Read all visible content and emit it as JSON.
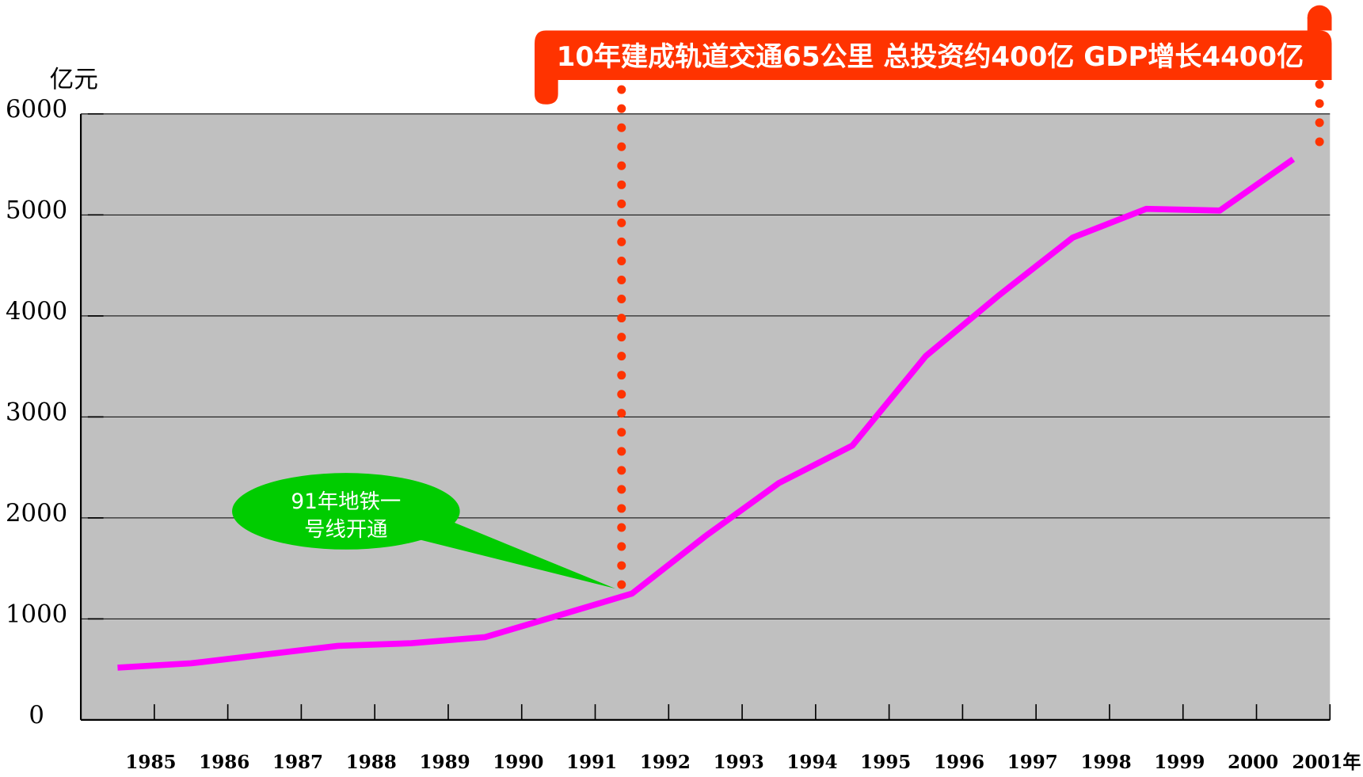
{
  "chart_data": {
    "type": "line",
    "y_axis_label": "亿元",
    "categories": [
      "1985",
      "1986",
      "1987",
      "1988",
      "1989",
      "1990",
      "1991",
      "1992",
      "1993",
      "1994",
      "1995",
      "1996",
      "1997",
      "1998",
      "1999",
      "2000",
      "2001年"
    ],
    "series": [
      {
        "name": "GDP",
        "color": "#ff00ff",
        "values": [
          517,
          560,
          647,
          733,
          759,
          819,
          1034,
          1250,
          1819,
          2345,
          2716,
          3603,
          4207,
          4776,
          5060,
          5043,
          5552
        ]
      }
    ],
    "ylim": [
      0,
      6000
    ],
    "yticks": [
      0,
      1000,
      2000,
      3000,
      4000,
      5000,
      6000
    ],
    "grid": true,
    "annotations": {
      "banner": "10年建成轨道交通65公里 总投资约400亿 GDP增长4400亿",
      "bubble": [
        "91年地铁一",
        "号线开通"
      ]
    }
  }
}
